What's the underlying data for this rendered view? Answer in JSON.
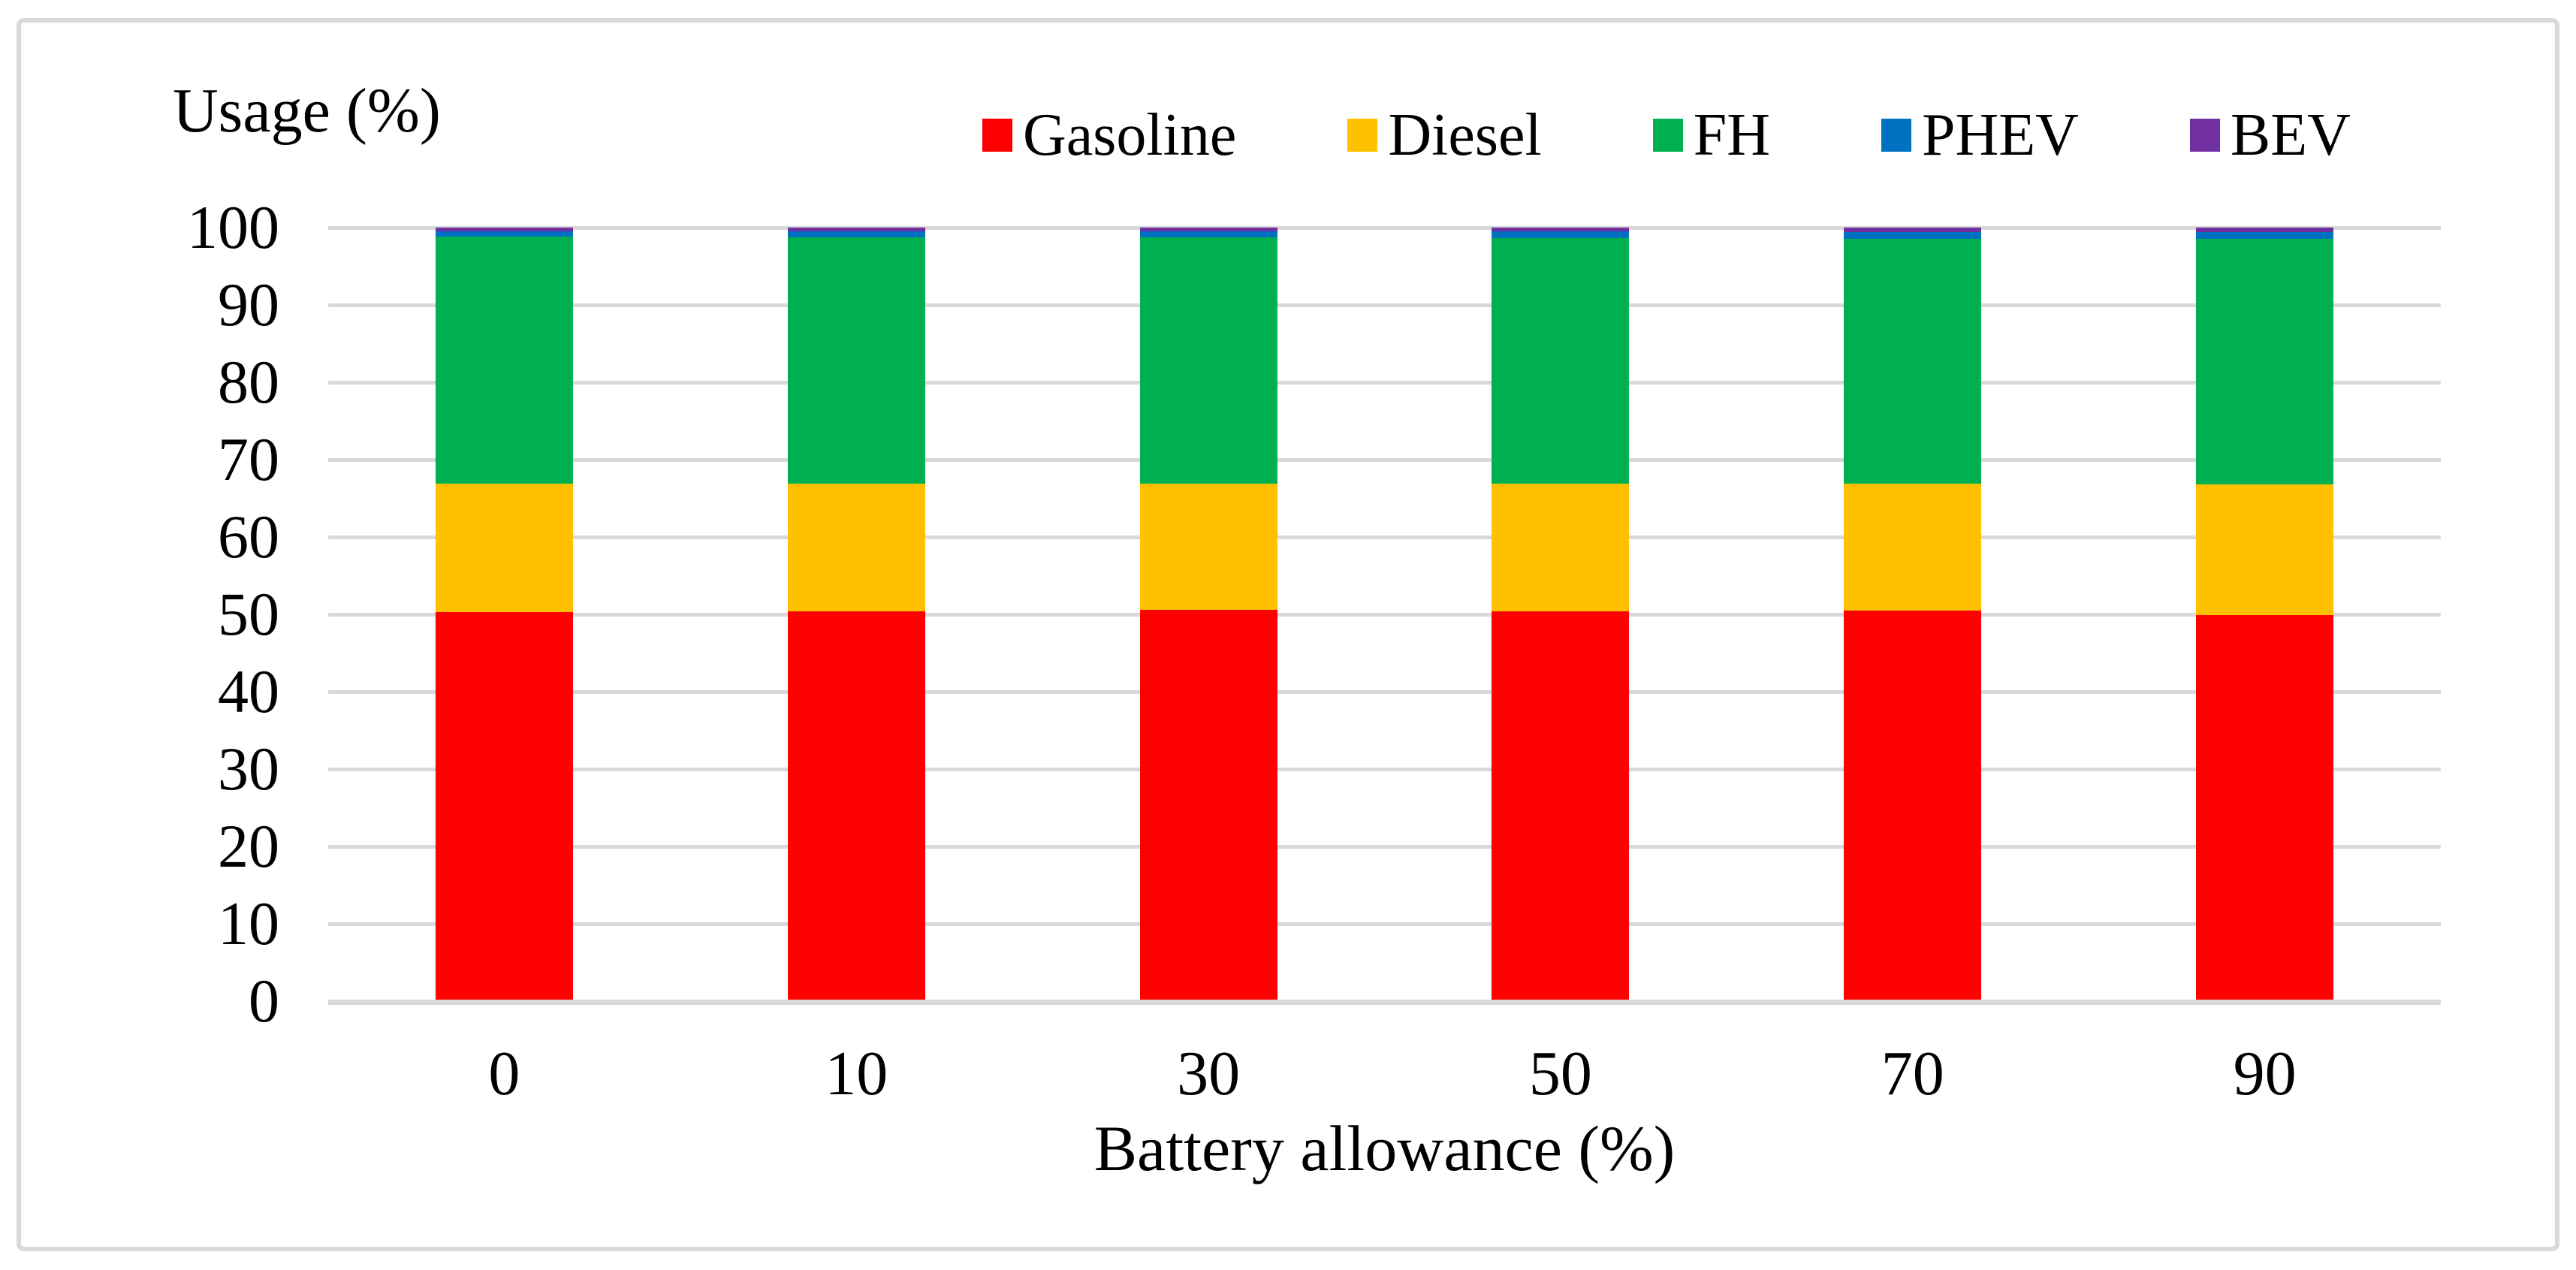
{
  "chart_data": {
    "type": "bar",
    "stacked": true,
    "ylabel_title": "Usage (%)",
    "xlabel": "Battery allowance (%)",
    "categories": [
      "0",
      "10",
      "30",
      "50",
      "70",
      "90"
    ],
    "series": [
      {
        "name": "Gasoline",
        "color": "#FF0000",
        "values": [
          50.3,
          50.4,
          50.6,
          50.4,
          50.5,
          49.9
        ]
      },
      {
        "name": "Diesel",
        "color": "#FFC000",
        "values": [
          16.6,
          16.5,
          16.3,
          16.5,
          16.4,
          16.9
        ]
      },
      {
        "name": "FH",
        "color": "#00B050",
        "values": [
          31.9,
          31.8,
          31.8,
          31.7,
          31.6,
          31.7
        ]
      },
      {
        "name": "PHEV",
        "color": "#0070C0",
        "values": [
          0.7,
          0.8,
          0.8,
          0.9,
          0.9,
          0.9
        ]
      },
      {
        "name": "BEV",
        "color": "#7030A0",
        "values": [
          0.5,
          0.5,
          0.5,
          0.5,
          0.6,
          0.6
        ]
      }
    ],
    "ylim": [
      0,
      100
    ],
    "ytick_step": 10,
    "yticks": [
      "100",
      "90",
      "80",
      "70",
      "60",
      "50",
      "40",
      "30",
      "20",
      "10",
      "0"
    ],
    "grid": true,
    "legend_position": "top",
    "colors": {
      "gridline": "#D9D9D9",
      "axis_line": "#D9D9D9",
      "frame_border": "#D9D9D9",
      "text": "#000000",
      "background": "#FFFFFF"
    }
  }
}
